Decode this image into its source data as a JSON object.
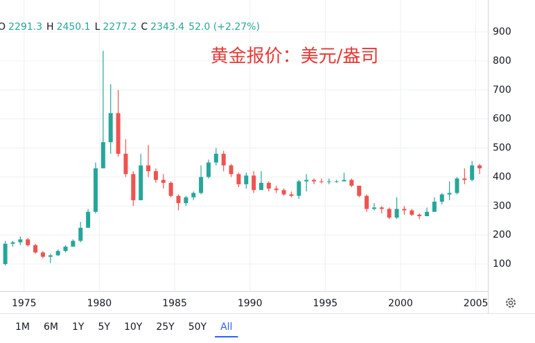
{
  "chart_data": {
    "type": "candlestick",
    "title": "黄金报价：美元/盎司",
    "ohlc_legend": [
      {
        "label": "O",
        "value": "2291.3"
      },
      {
        "label": "H",
        "value": "2450.1"
      },
      {
        "label": "L",
        "value": "2277.2"
      },
      {
        "label": "C",
        "value": "2343.4"
      },
      {
        "label": "",
        "value": "52.0 (+2.27%)"
      }
    ],
    "x": [
      1973.75,
      1974.25,
      1974.75,
      1975.25,
      1975.75,
      1976.25,
      1976.75,
      1977.25,
      1977.75,
      1978.25,
      1978.75,
      1979.25,
      1979.75,
      1980.25,
      1980.75,
      1981.25,
      1981.75,
      1982.25,
      1982.75,
      1983.25,
      1983.75,
      1984.25,
      1984.75,
      1985.25,
      1985.75,
      1986.25,
      1986.75,
      1987.25,
      1987.75,
      1988.25,
      1988.75,
      1989.25,
      1989.75,
      1990.25,
      1990.75,
      1991.25,
      1991.75,
      1992.25,
      1992.75,
      1993.25,
      1993.75,
      1994.25,
      1994.75,
      1995.25,
      1995.75,
      1996.25,
      1996.75,
      1997.25,
      1997.75,
      1998.25,
      1998.75,
      1999.25,
      1999.75,
      2000.25,
      2000.75,
      2001.25,
      2001.75,
      2002.25,
      2002.75,
      2003.25,
      2003.75,
      2004.25,
      2004.75,
      2005.25
    ],
    "open": [
      100,
      170,
      175,
      185,
      165,
      140,
      125,
      130,
      145,
      160,
      180,
      225,
      280,
      430,
      520,
      620,
      480,
      410,
      320,
      440,
      420,
      390,
      380,
      335,
      310,
      330,
      345,
      400,
      450,
      480,
      440,
      410,
      375,
      405,
      355,
      380,
      360,
      355,
      340,
      335,
      385,
      390,
      385,
      383,
      385,
      385,
      390,
      370,
      335,
      290,
      295,
      290,
      260,
      290,
      285,
      270,
      265,
      280,
      315,
      340,
      345,
      395,
      390,
      440
    ],
    "high": [
      180,
      180,
      195,
      190,
      170,
      145,
      135,
      150,
      165,
      185,
      245,
      290,
      450,
      835,
      720,
      700,
      530,
      420,
      480,
      510,
      430,
      410,
      385,
      340,
      335,
      350,
      440,
      460,
      500,
      490,
      445,
      415,
      415,
      420,
      420,
      385,
      370,
      360,
      350,
      390,
      410,
      395,
      395,
      395,
      390,
      415,
      395,
      370,
      340,
      310,
      300,
      295,
      330,
      300,
      290,
      275,
      295,
      330,
      345,
      385,
      400,
      430,
      455,
      445
    ],
    "low": [
      95,
      160,
      165,
      160,
      135,
      120,
      103,
      128,
      140,
      160,
      175,
      225,
      275,
      430,
      480,
      470,
      400,
      300,
      320,
      400,
      380,
      360,
      330,
      285,
      300,
      320,
      340,
      395,
      440,
      420,
      400,
      365,
      360,
      345,
      355,
      350,
      345,
      335,
      330,
      325,
      350,
      375,
      378,
      375,
      380,
      385,
      365,
      330,
      280,
      285,
      275,
      255,
      255,
      270,
      265,
      255,
      265,
      280,
      305,
      320,
      340,
      375,
      385,
      410
    ],
    "close": [
      170,
      175,
      185,
      165,
      140,
      125,
      130,
      145,
      160,
      180,
      225,
      280,
      430,
      520,
      620,
      480,
      410,
      320,
      440,
      420,
      390,
      380,
      335,
      310,
      330,
      345,
      400,
      450,
      480,
      440,
      410,
      375,
      405,
      355,
      380,
      360,
      355,
      340,
      335,
      385,
      390,
      385,
      383,
      385,
      385,
      390,
      370,
      335,
      290,
      295,
      290,
      260,
      290,
      285,
      270,
      265,
      280,
      315,
      340,
      345,
      395,
      390,
      440,
      430
    ],
    "up_color": "#26a69a",
    "down_color": "#ef5350",
    "xlim": [
      1973.4,
      2005.8
    ],
    "xticks": [
      1975,
      1980,
      1985,
      1990,
      1995,
      2000,
      2005
    ],
    "ylim": [
      7,
      1010
    ],
    "yticks": [
      100,
      200,
      300,
      400,
      500,
      600,
      700,
      800,
      900
    ],
    "grid": true,
    "ranges": [
      "1M",
      "6M",
      "1Y",
      "5Y",
      "10Y",
      "25Y",
      "50Y",
      "All"
    ],
    "active_range": 7
  }
}
